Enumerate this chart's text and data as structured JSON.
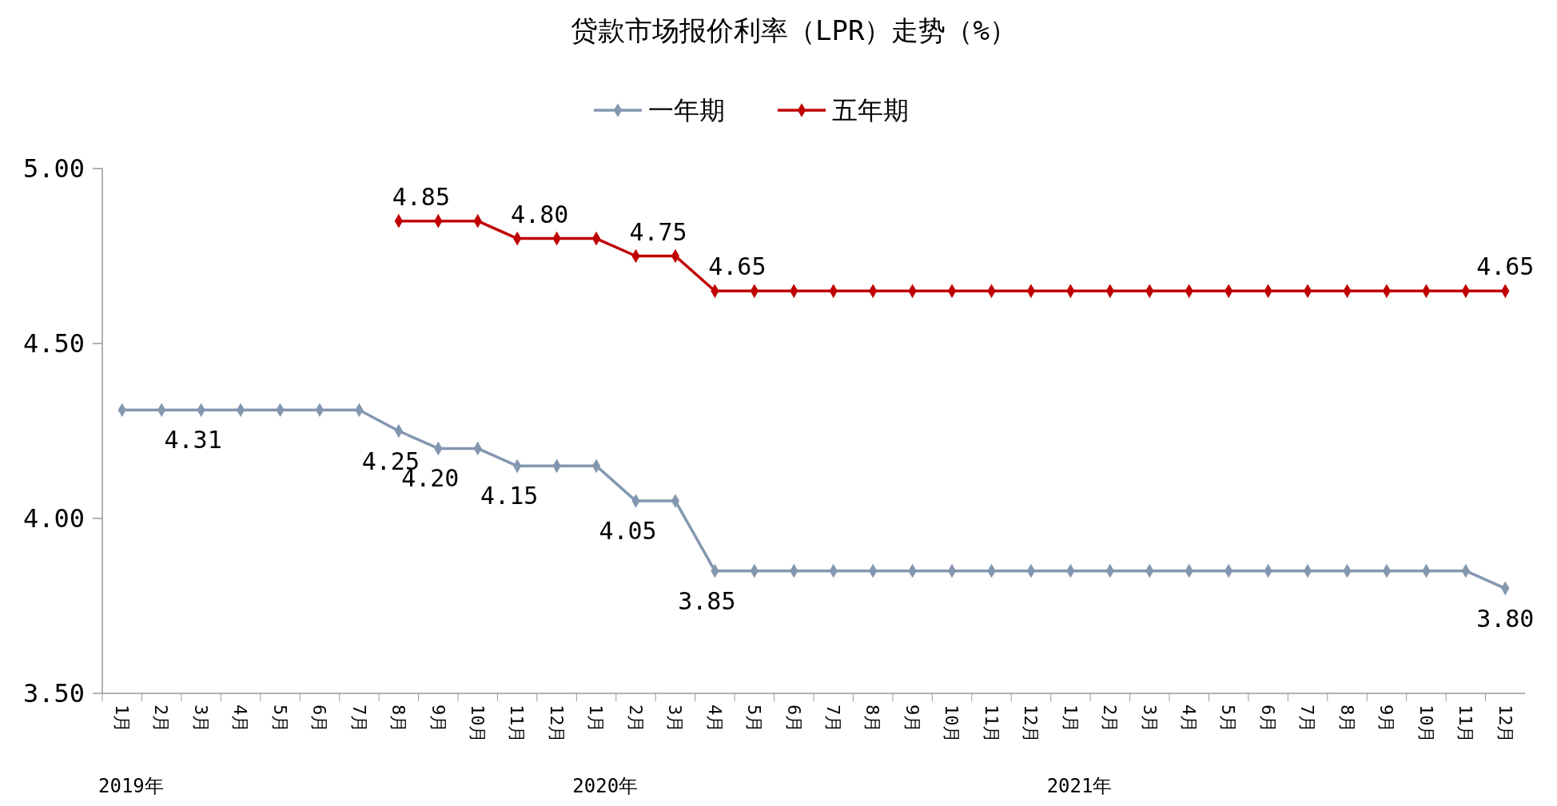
{
  "chart_data": {
    "type": "line",
    "title": "贷款市场报价利率（LPR）走势（%）",
    "categories": [
      "1月",
      "2月",
      "3月",
      "4月",
      "5月",
      "6月",
      "7月",
      "8月",
      "9月",
      "10月",
      "11月",
      "12月",
      "1月",
      "2月",
      "3月",
      "4月",
      "5月",
      "6月",
      "7月",
      "8月",
      "9月",
      "10月",
      "11月",
      "12月",
      "1月",
      "2月",
      "3月",
      "4月",
      "5月",
      "6月",
      "7月",
      "8月",
      "9月",
      "10月",
      "11月",
      "12月"
    ],
    "series": [
      {
        "name": "一年期",
        "color": "#8497b0",
        "values": [
          4.31,
          4.31,
          4.31,
          4.31,
          4.31,
          4.31,
          4.31,
          4.25,
          4.2,
          4.2,
          4.15,
          4.15,
          4.15,
          4.05,
          4.05,
          3.85,
          3.85,
          3.85,
          3.85,
          3.85,
          3.85,
          3.85,
          3.85,
          3.85,
          3.85,
          3.85,
          3.85,
          3.85,
          3.85,
          3.85,
          3.85,
          3.85,
          3.85,
          3.85,
          3.85,
          3.8
        ],
        "value_labels": [
          null,
          null,
          "4.31",
          null,
          null,
          null,
          null,
          "4.25",
          "4.20",
          null,
          "4.15",
          null,
          null,
          "4.05",
          null,
          "3.85",
          null,
          null,
          null,
          null,
          null,
          null,
          null,
          null,
          null,
          null,
          null,
          null,
          null,
          null,
          null,
          null,
          null,
          null,
          null,
          "3.80"
        ]
      },
      {
        "name": "五年期",
        "color": "#c00000",
        "values": [
          null,
          null,
          null,
          null,
          null,
          null,
          null,
          4.85,
          4.85,
          4.85,
          4.8,
          4.8,
          4.8,
          4.75,
          4.75,
          4.65,
          4.65,
          4.65,
          4.65,
          4.65,
          4.65,
          4.65,
          4.65,
          4.65,
          4.65,
          4.65,
          4.65,
          4.65,
          4.65,
          4.65,
          4.65,
          4.65,
          4.65,
          4.65,
          4.65,
          4.65
        ],
        "value_labels": [
          null,
          null,
          null,
          null,
          null,
          null,
          null,
          "4.85",
          null,
          null,
          "4.80",
          null,
          null,
          "4.75",
          null,
          "4.65",
          null,
          null,
          null,
          null,
          null,
          null,
          null,
          null,
          null,
          null,
          null,
          null,
          null,
          null,
          null,
          null,
          null,
          null,
          null,
          "4.65"
        ]
      }
    ],
    "ylim": [
      3.5,
      5.0
    ],
    "yticks": [
      {
        "value": 3.5,
        "label": "3.50"
      },
      {
        "value": 4.0,
        "label": "4.00"
      },
      {
        "value": 4.5,
        "label": "4.50"
      },
      {
        "value": 5.0,
        "label": "5.00"
      }
    ],
    "annotations": [
      "2019年",
      "2020年",
      "2021年"
    ],
    "grid": false,
    "legend": "top",
    "marker": "diamond",
    "line_style": "solid"
  }
}
